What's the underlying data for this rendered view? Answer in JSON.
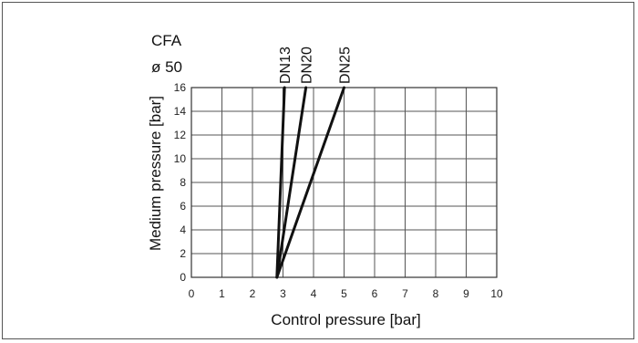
{
  "header": {
    "line1": "CFA",
    "line2": "ø 50"
  },
  "chart_data": {
    "type": "line",
    "title": "",
    "xlabel": "Control pressure [bar]",
    "ylabel": "Medium pressure [bar]",
    "xlim": [
      0,
      10
    ],
    "ylim": [
      0,
      16
    ],
    "x_ticks": [
      0,
      1,
      2,
      3,
      4,
      5,
      6,
      7,
      8,
      9,
      10
    ],
    "y_ticks": [
      0,
      2,
      4,
      6,
      8,
      10,
      12,
      14,
      16
    ],
    "grid": true,
    "series": [
      {
        "name": "DN13",
        "x": [
          2.8,
          3.05
        ],
        "y": [
          0,
          16
        ]
      },
      {
        "name": "DN20",
        "x": [
          2.8,
          3.75
        ],
        "y": [
          0,
          16
        ]
      },
      {
        "name": "DN25",
        "x": [
          2.8,
          5.0
        ],
        "y": [
          0,
          16
        ]
      }
    ],
    "line_color": "#111111",
    "grid_color": "#555555"
  }
}
